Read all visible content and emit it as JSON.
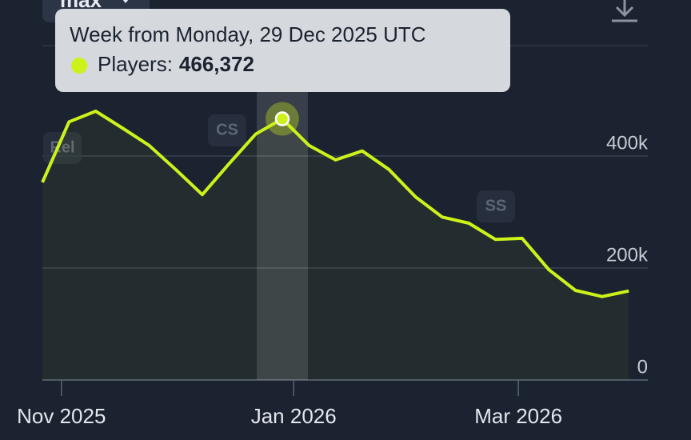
{
  "range_selector": "max",
  "chart_data": {
    "type": "line",
    "x": [
      "2025-10-27",
      "2025-11-03",
      "2025-11-10",
      "2025-11-17",
      "2025-11-24",
      "2025-12-01",
      "2025-12-08",
      "2025-12-15",
      "2025-12-22",
      "2025-12-29",
      "2026-01-05",
      "2026-01-12",
      "2026-01-19",
      "2026-01-26",
      "2026-02-02",
      "2026-02-09",
      "2026-02-16",
      "2026-02-23",
      "2026-03-02",
      "2026-03-09",
      "2026-03-16",
      "2026-03-23",
      "2026-03-30"
    ],
    "series": [
      {
        "name": "Players",
        "color": "#ccf21a",
        "values": [
          353000,
          461000,
          480000,
          450000,
          419000,
          376000,
          331000,
          386000,
          439000,
          466372,
          419000,
          393000,
          409000,
          376000,
          327000,
          291000,
          280000,
          251000,
          253000,
          197000,
          160000,
          149000,
          159000
        ]
      }
    ],
    "xlim": [
      "2025-10-27",
      "2026-04-04"
    ],
    "xticks": [
      {
        "value": "2025-11-01",
        "label": "Nov 2025"
      },
      {
        "value": "2026-01-01",
        "label": "Jan 2026"
      },
      {
        "value": "2026-03-01",
        "label": "Mar 2026"
      }
    ],
    "ylim": [
      0,
      600000
    ],
    "yticks": [
      0,
      {
        "value": 200000,
        "label": "200k"
      },
      {
        "value": 400000,
        "label": "400k"
      }
    ],
    "grid": true,
    "annotations": [
      "Rel",
      "CS",
      "SS"
    ],
    "tooltip": {
      "title": "Week from Monday, 29 Dec 2025 UTC",
      "label": "Players:",
      "value": 466372,
      "value_label": "466,372"
    }
  }
}
